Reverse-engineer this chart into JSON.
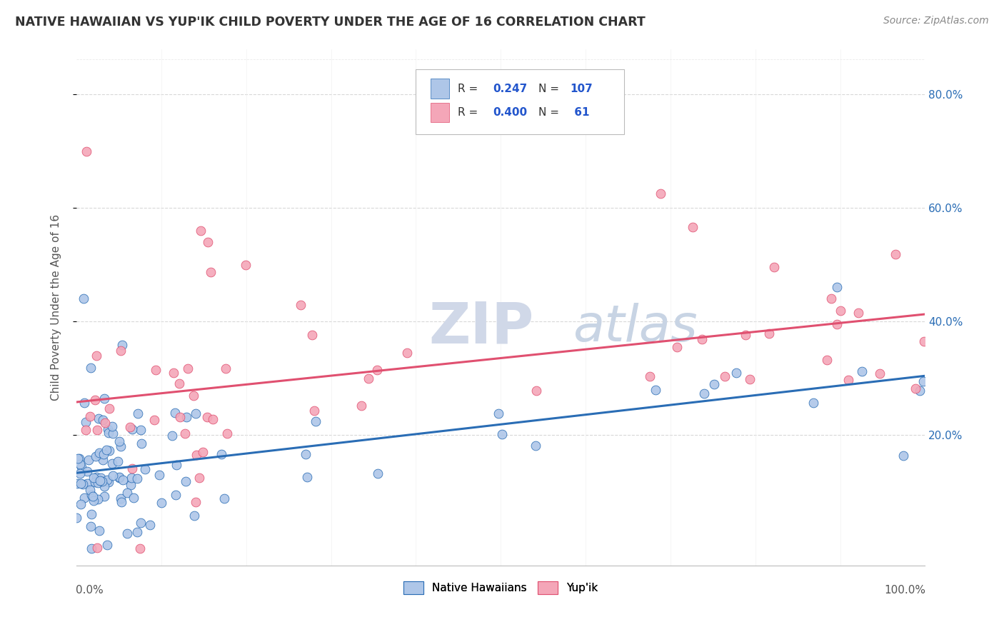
{
  "title": "NATIVE HAWAIIAN VS YUP'IK CHILD POVERTY UNDER THE AGE OF 16 CORRELATION CHART",
  "source": "Source: ZipAtlas.com",
  "legend_label1": "Native Hawaiians",
  "legend_label2": "Yup'ik",
  "r1": 0.247,
  "n1": 107,
  "r2": 0.4,
  "n2": 61,
  "color1": "#aec6e8",
  "color2": "#f4a6b8",
  "line_color1": "#2a6db5",
  "line_color2": "#e05070",
  "title_color": "#333333",
  "source_color": "#888888",
  "legend_r_color": "#2255cc",
  "background_color": "#ffffff",
  "grid_color": "#d8d8d8",
  "watermark_color": "#d0d8e8",
  "xmin": 0.0,
  "xmax": 1.0,
  "ymin": -0.03,
  "ymax": 0.88,
  "ytick_vals": [
    0.2,
    0.4,
    0.6,
    0.8
  ],
  "ytick_labels": [
    "20.0%",
    "40.0%",
    "60.0%",
    "80.0%"
  ]
}
